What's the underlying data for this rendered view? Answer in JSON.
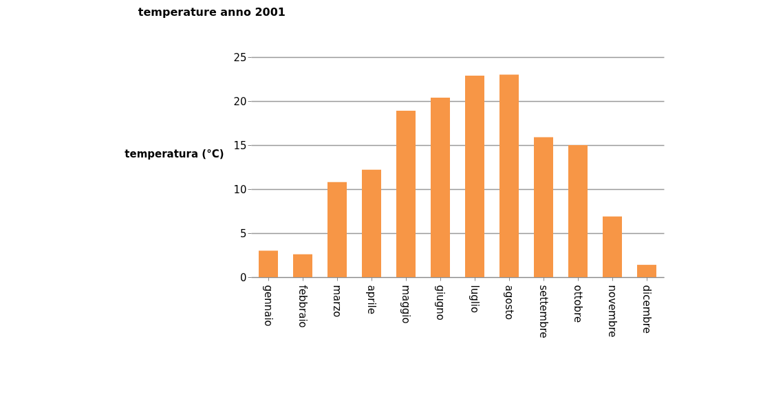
{
  "chart_data": {
    "type": "bar",
    "title": "temperature anno 2001",
    "ylabel": "temperatura (°C)",
    "categories": [
      "gennaio",
      "febbraio",
      "marzo",
      "aprile",
      "maggio",
      "giugno",
      "luglio",
      "agosto",
      "settembre",
      "ottobre",
      "novembre",
      "dicembre"
    ],
    "series": [
      {
        "color": "#f79646",
        "values": [
          3,
          2.6,
          10.8,
          12.2,
          18.9,
          20.4,
          22.9,
          23,
          15.9,
          15,
          6.9,
          1.4
        ]
      }
    ],
    "ylim": [
      0,
      25
    ],
    "yticks": [
      0,
      5,
      10,
      15,
      20,
      25
    ],
    "grid": "y",
    "legend": false
  }
}
